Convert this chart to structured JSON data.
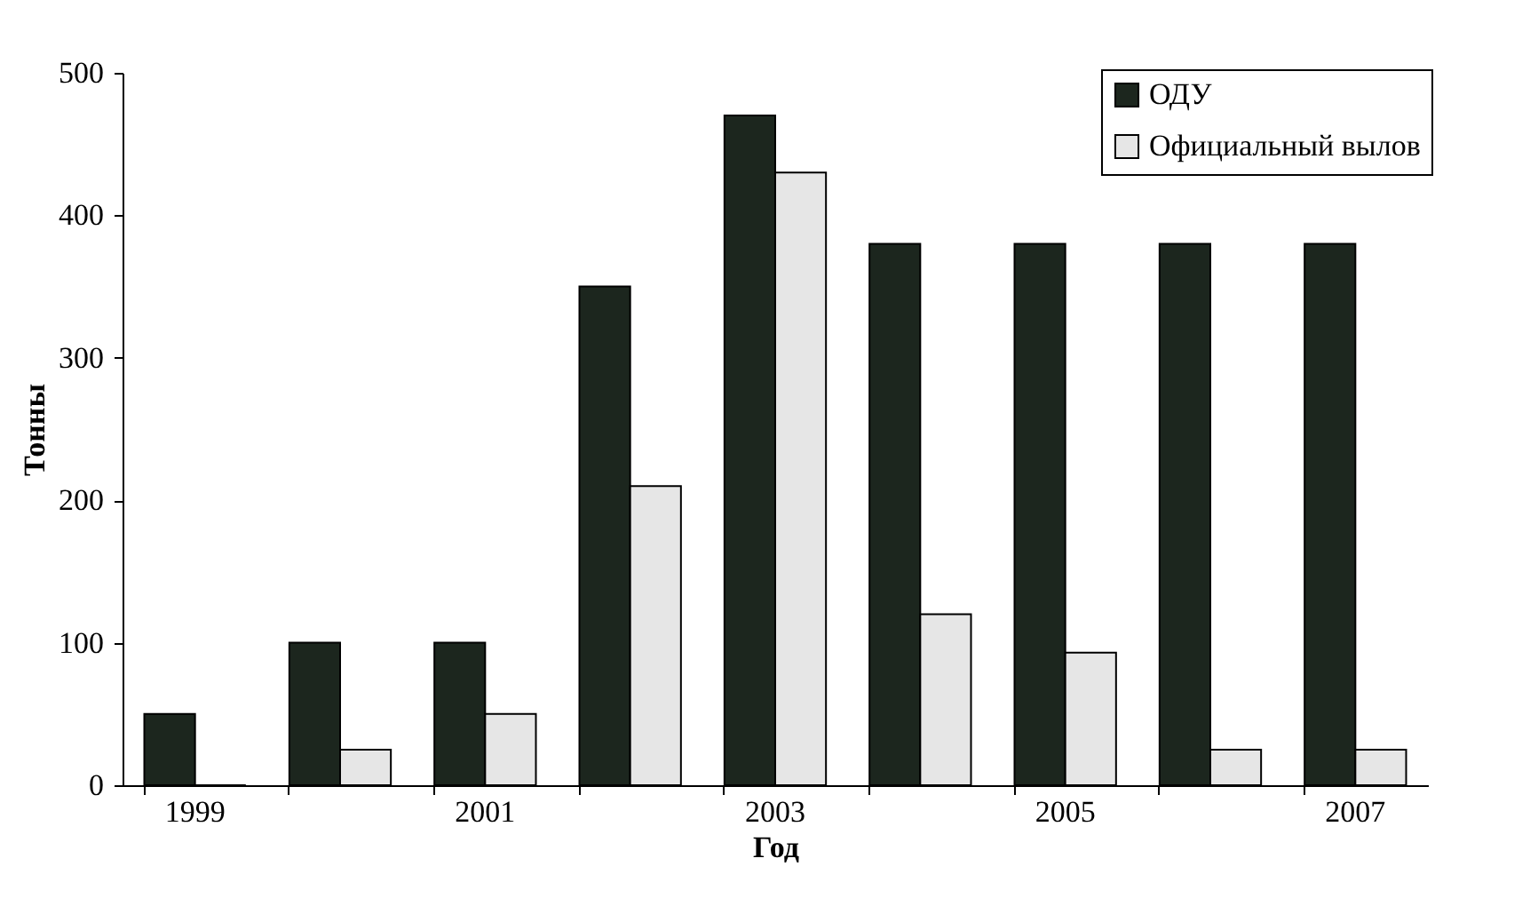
{
  "chart_data": {
    "type": "bar",
    "xlabel": "Год",
    "ylabel": "Тонны",
    "categories": [
      "1999",
      null,
      "2001",
      null,
      "2003",
      null,
      "2005",
      null,
      "2007"
    ],
    "series": [
      {
        "name": "ОДУ",
        "color": "#1c261e",
        "values": [
          50,
          100,
          100,
          350,
          470,
          380,
          380,
          380,
          380
        ]
      },
      {
        "name": "Официальный вылов",
        "color": "#e6e6e6",
        "values": [
          0,
          25,
          50,
          210,
          430,
          120,
          93,
          25,
          25
        ]
      }
    ],
    "ylim": [
      0,
      500
    ],
    "yticks": [
      0,
      100,
      200,
      300,
      400,
      500
    ],
    "grid": false,
    "legend": "top right"
  }
}
